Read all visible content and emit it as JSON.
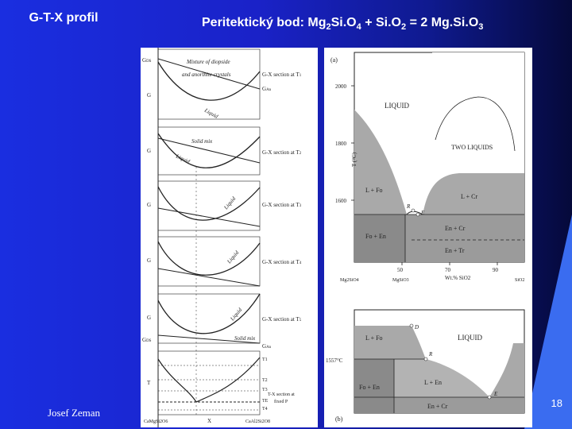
{
  "left_title": "G-T-X profil",
  "main_title": {
    "prefix": "Peritektický bod: Mg",
    "s1": "2",
    "m1": "Si.O",
    "s2": "4",
    "m2": " + Si.O",
    "s3": "2",
    "m3": " = 2 Mg.Si.O",
    "s4": "3"
  },
  "author": "Josef Zeman",
  "page_number": "18",
  "left_figure": {
    "sections": [
      {
        "g_top": "G",
        "g_top2": "G",
        "g_sub": "DS",
        "label": "G-X section at T",
        "label_sub": "1",
        "g_side": "G",
        "g_side_sub": "An",
        "note1": "Mixture of diopside",
        "note2": "and anorthite crystals",
        "curve": "Liquid"
      },
      {
        "g": "G",
        "label": "G-X section at T",
        "label_sub": "2",
        "note": "Solid mix",
        "curve": "Liquid"
      },
      {
        "g": "G",
        "label": "G-X section at T",
        "label_sub": "3",
        "curve": "Liquid"
      },
      {
        "g": "G",
        "label": "G-X section at T",
        "label_sub": "4",
        "curve": "Liquid"
      },
      {
        "g": "G",
        "g2": "G",
        "g2_sub": "DS",
        "label": "G-X section at T",
        "label_sub": "5",
        "note": "Solid mix",
        "curve": "Liquid",
        "g_side": "G",
        "g_side_sub": "An"
      }
    ],
    "tx": {
      "t_axis": "T",
      "t_labels": [
        "T1",
        "T2",
        "T3",
        "TE",
        "T4"
      ],
      "caption1": "T-X section at",
      "caption2": "fixed P",
      "x_left": "CaMgSi2O6",
      "x_mid": "X",
      "x_right": "CaAl2Si2O8"
    }
  },
  "right_figure_a": {
    "panel_label": "(a)",
    "y_axis": "T (°C)",
    "y_ticks": [
      "2000",
      "1800",
      "1600"
    ],
    "x_ticks": [
      "50",
      "70",
      "90"
    ],
    "x_left": "Mg2SiO4",
    "x_mid1": "MgSiO3",
    "x_axis": "Wt.% SiO2",
    "x_right": "SiO2",
    "fields": [
      "LIQUID",
      "TWO LIQUIDS",
      "L + Fo",
      "L + Cr",
      "Fo + En",
      "En + Cr",
      "En + Tr"
    ],
    "points": [
      "R",
      "E"
    ]
  },
  "right_figure_b": {
    "panel_label": "(b)",
    "temp_label": "1557°C",
    "fields": [
      "LIQUID",
      "L + Fo",
      "L + En",
      "Fo + En",
      "En + Cr"
    ],
    "points": [
      "D",
      "R",
      "E"
    ]
  },
  "colors": {
    "background": "#1a22c8",
    "accent": "#3a6cf0"
  }
}
